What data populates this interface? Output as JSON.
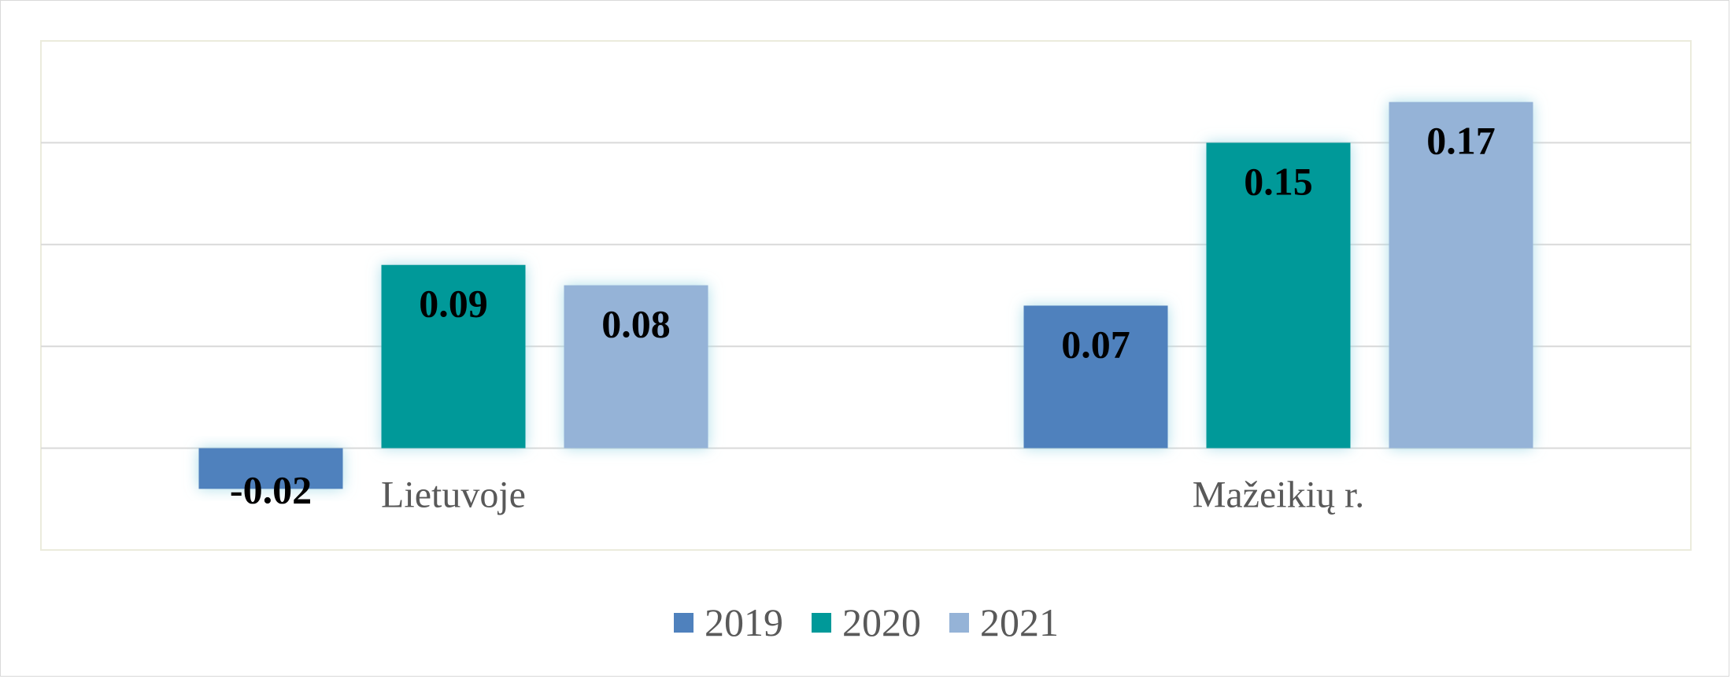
{
  "chart_data": {
    "type": "bar",
    "title": "",
    "xlabel": "",
    "ylabel": "",
    "categories": [
      "Lietuvoje",
      "Mažeikių r."
    ],
    "series": [
      {
        "name": "2019",
        "values": [
          -0.02,
          0.07
        ],
        "labels": [
          "-0.02",
          "0.07"
        ],
        "color": "#4F81BD"
      },
      {
        "name": "2020",
        "values": [
          0.09,
          0.15
        ],
        "labels": [
          "0.09",
          "0.15"
        ],
        "color": "#009999"
      },
      {
        "name": "2021",
        "values": [
          0.08,
          0.17
        ],
        "labels": [
          "0.08",
          "0.17"
        ],
        "color": "#95B3D7"
      }
    ],
    "ylim": [
      -0.05,
      0.2
    ],
    "grid": true,
    "legend": "bottom"
  }
}
